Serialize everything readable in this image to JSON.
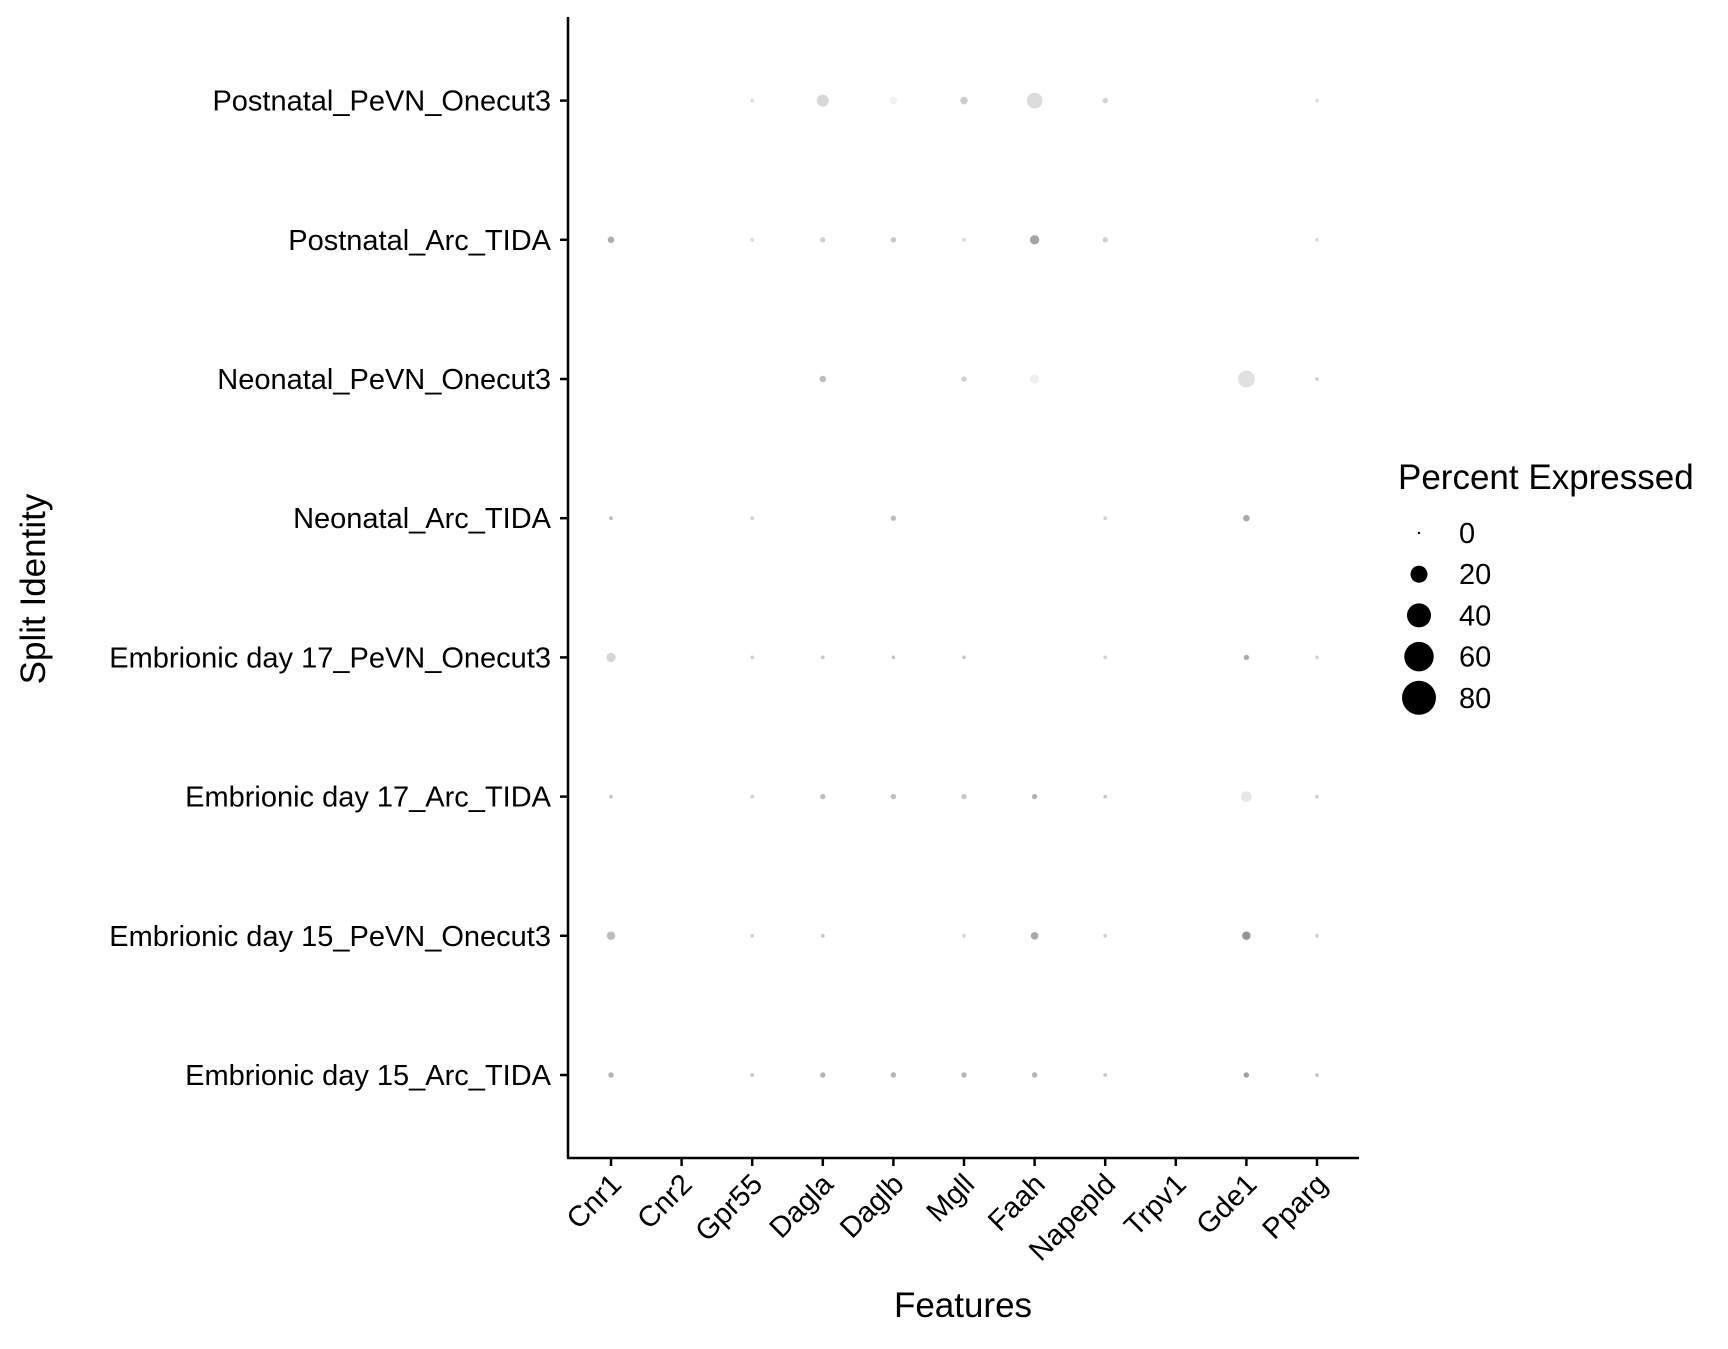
{
  "chart_data": {
    "type": "dotplot",
    "xlabel": "Features",
    "ylabel": "Split Identity",
    "features": [
      "Cnr1",
      "Cnr2",
      "Gpr55",
      "Dagla",
      "Daglb",
      "Mgll",
      "Faah",
      "Napepld",
      "Trpv1",
      "Gde1",
      "Pparg"
    ],
    "identities": [
      "Embrionic day 15_Arc_TIDA",
      "Embrionic day 15_PeVN_Onecut3",
      "Embrionic day 17_Arc_TIDA",
      "Embrionic day 17_PeVN_Onecut3",
      "Neonatal_Arc_TIDA",
      "Neonatal_PeVN_Onecut3",
      "Postnatal_Arc_TIDA",
      "Postnatal_PeVN_Onecut3"
    ],
    "percent_expressed": [
      [
        2,
        0,
        1,
        2,
        2,
        2,
        2,
        1,
        0,
        2,
        1
      ],
      [
        5,
        0,
        1,
        1,
        0,
        1,
        4,
        1,
        0,
        5,
        1
      ],
      [
        1,
        0,
        1,
        2,
        2,
        2,
        2,
        1,
        0,
        8,
        1
      ],
      [
        6,
        0,
        1,
        1,
        1,
        1,
        0,
        1,
        0,
        2,
        1
      ],
      [
        1,
        0,
        1,
        0,
        2,
        0,
        0,
        1,
        0,
        3,
        0
      ],
      [
        0,
        0,
        0,
        3,
        0,
        2,
        6,
        0,
        0,
        20,
        1
      ],
      [
        3,
        0,
        1,
        2,
        2,
        1,
        6,
        2,
        0,
        0,
        1
      ],
      [
        0,
        0,
        1,
        10,
        4,
        4,
        17,
        2,
        0,
        0,
        1
      ]
    ],
    "expression_gray": [
      [
        180,
        255,
        200,
        180,
        180,
        180,
        180,
        200,
        255,
        160,
        200
      ],
      [
        190,
        255,
        210,
        200,
        255,
        210,
        170,
        210,
        255,
        150,
        210
      ],
      [
        200,
        255,
        210,
        190,
        190,
        200,
        180,
        200,
        255,
        230,
        210
      ],
      [
        215,
        255,
        210,
        200,
        200,
        200,
        255,
        210,
        255,
        170,
        210
      ],
      [
        190,
        255,
        210,
        255,
        190,
        255,
        255,
        210,
        255,
        170,
        255
      ],
      [
        255,
        255,
        255,
        190,
        255,
        210,
        240,
        255,
        255,
        225,
        210
      ],
      [
        175,
        255,
        220,
        210,
        200,
        220,
        165,
        210,
        255,
        255,
        220
      ],
      [
        255,
        255,
        220,
        215,
        240,
        205,
        220,
        210,
        255,
        255,
        220
      ]
    ],
    "legend": {
      "title": "Percent Expressed",
      "entries": [
        "0",
        "20",
        "40",
        "60",
        "80"
      ],
      "values": [
        0,
        20,
        40,
        60,
        80
      ],
      "placement": "right"
    },
    "size_max_value": 80
  }
}
